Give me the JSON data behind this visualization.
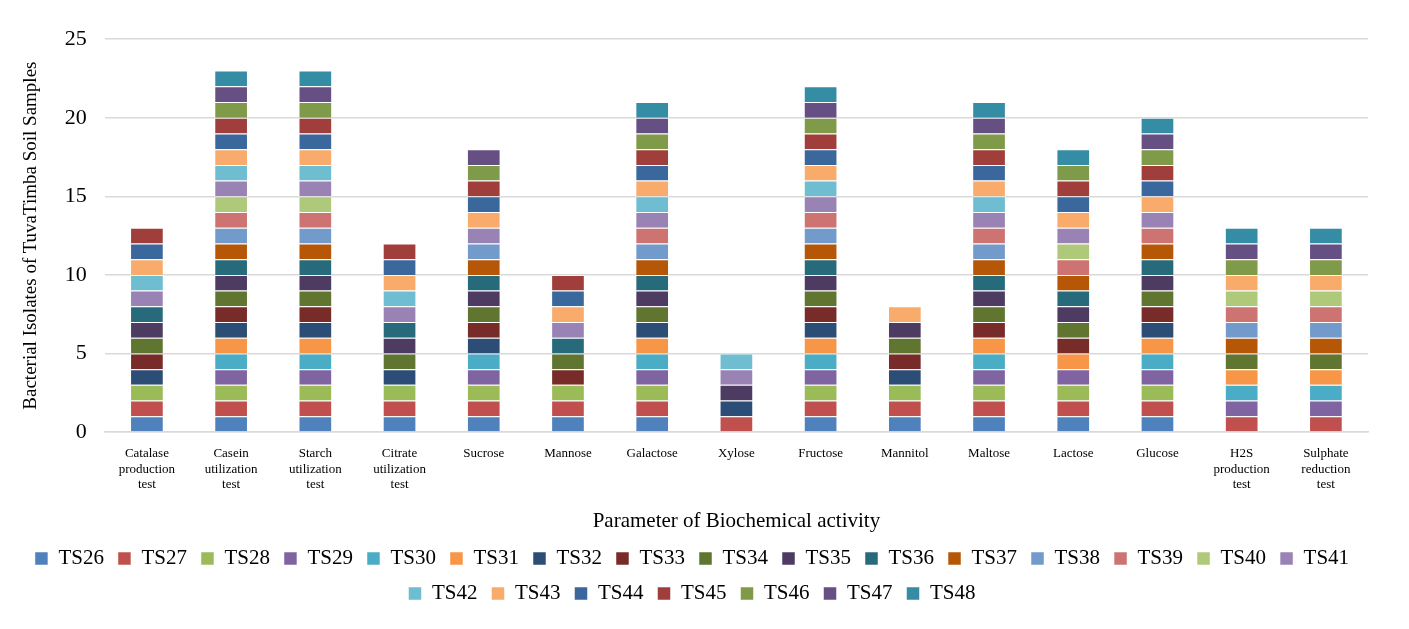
{
  "chart_data": {
    "type": "bar",
    "stacked": true,
    "xlabel": "Parameter of Biochemical activity",
    "ylabel": "Bacterial Isolates of TuvaTimba Soil Samples",
    "categories": [
      "Catalase production test",
      "Casein utilization test",
      "Starch utilization test",
      "Citrate utilization test",
      "Sucrose",
      "Mannose",
      "Galactose",
      "Xylose",
      "Fructose",
      "Mannitol",
      "Maltose",
      "Lactose",
      "Glucose",
      "H2S production test",
      "Sulphate reduction test"
    ],
    "ylim": [
      0,
      25
    ],
    "yticks": [
      0,
      5,
      10,
      15,
      20,
      25
    ],
    "grid": "y",
    "legend": "bottom",
    "series": [
      {
        "name": "TS26",
        "color": "#4f81bd",
        "values": [
          1,
          1,
          1,
          1,
          1,
          1,
          1,
          0,
          1,
          1,
          1,
          1,
          1,
          0,
          0
        ]
      },
      {
        "name": "TS27",
        "color": "#c0504d",
        "values": [
          1,
          1,
          1,
          1,
          1,
          1,
          1,
          1,
          1,
          1,
          1,
          1,
          1,
          1,
          1
        ]
      },
      {
        "name": "TS28",
        "color": "#9bbb59",
        "values": [
          1,
          1,
          1,
          1,
          1,
          1,
          1,
          0,
          1,
          1,
          1,
          1,
          1,
          0,
          0
        ]
      },
      {
        "name": "TS29",
        "color": "#8064a2",
        "values": [
          0,
          1,
          1,
          0,
          1,
          0,
          1,
          0,
          1,
          0,
          1,
          1,
          1,
          1,
          1
        ]
      },
      {
        "name": "TS30",
        "color": "#4bacc6",
        "values": [
          0,
          1,
          1,
          0,
          1,
          0,
          1,
          0,
          1,
          0,
          1,
          0,
          1,
          1,
          1
        ]
      },
      {
        "name": "TS31",
        "color": "#f79646",
        "values": [
          0,
          1,
          1,
          0,
          0,
          0,
          1,
          0,
          1,
          0,
          1,
          1,
          1,
          1,
          1
        ]
      },
      {
        "name": "TS32",
        "color": "#2c4d75",
        "values": [
          1,
          1,
          1,
          1,
          1,
          0,
          1,
          1,
          1,
          1,
          0,
          0,
          1,
          0,
          0
        ]
      },
      {
        "name": "TS33",
        "color": "#772c2a",
        "values": [
          1,
          1,
          1,
          0,
          1,
          1,
          0,
          0,
          1,
          1,
          1,
          1,
          1,
          0,
          0
        ]
      },
      {
        "name": "TS34",
        "color": "#5f7530",
        "values": [
          1,
          1,
          1,
          1,
          1,
          1,
          1,
          0,
          1,
          1,
          1,
          1,
          1,
          1,
          1
        ]
      },
      {
        "name": "TS35",
        "color": "#4d3b62",
        "values": [
          1,
          1,
          1,
          1,
          1,
          0,
          1,
          1,
          1,
          1,
          1,
          1,
          1,
          0,
          0
        ]
      },
      {
        "name": "TS36",
        "color": "#276a7c",
        "values": [
          1,
          1,
          1,
          1,
          1,
          1,
          1,
          0,
          1,
          0,
          1,
          1,
          1,
          0,
          0
        ]
      },
      {
        "name": "TS37",
        "color": "#b65708",
        "values": [
          0,
          1,
          1,
          0,
          1,
          0,
          1,
          0,
          1,
          0,
          1,
          1,
          1,
          1,
          1
        ]
      },
      {
        "name": "TS38",
        "color": "#729aca",
        "values": [
          0,
          1,
          1,
          0,
          1,
          0,
          1,
          0,
          1,
          0,
          1,
          0,
          0,
          1,
          1
        ]
      },
      {
        "name": "TS39",
        "color": "#cd7371",
        "values": [
          0,
          1,
          1,
          0,
          0,
          0,
          1,
          0,
          1,
          0,
          1,
          1,
          1,
          1,
          1
        ]
      },
      {
        "name": "TS40",
        "color": "#afc97a",
        "values": [
          0,
          1,
          1,
          0,
          0,
          0,
          0,
          0,
          0,
          0,
          0,
          1,
          0,
          1,
          1
        ]
      },
      {
        "name": "TS41",
        "color": "#9983b5",
        "values": [
          1,
          1,
          1,
          1,
          1,
          1,
          1,
          1,
          1,
          0,
          1,
          1,
          1,
          0,
          0
        ]
      },
      {
        "name": "TS42",
        "color": "#6fbdd1",
        "values": [
          1,
          1,
          1,
          1,
          0,
          0,
          1,
          1,
          1,
          0,
          1,
          0,
          0,
          0,
          0
        ]
      },
      {
        "name": "TS43",
        "color": "#f9ab6b",
        "values": [
          1,
          1,
          1,
          1,
          1,
          1,
          1,
          0,
          1,
          1,
          1,
          1,
          1,
          1,
          1
        ]
      },
      {
        "name": "TS44",
        "color": "#3a679c",
        "values": [
          1,
          1,
          1,
          1,
          1,
          1,
          1,
          0,
          1,
          0,
          1,
          1,
          1,
          0,
          0
        ]
      },
      {
        "name": "TS45",
        "color": "#9f3e3b",
        "values": [
          1,
          1,
          1,
          1,
          1,
          1,
          1,
          0,
          1,
          0,
          1,
          1,
          1,
          0,
          0
        ]
      },
      {
        "name": "TS46",
        "color": "#7f9a48",
        "values": [
          0,
          1,
          1,
          0,
          1,
          0,
          1,
          0,
          1,
          0,
          1,
          1,
          1,
          1,
          1
        ]
      },
      {
        "name": "TS47",
        "color": "#664f82",
        "values": [
          0,
          1,
          1,
          0,
          1,
          0,
          1,
          0,
          1,
          0,
          1,
          0,
          1,
          1,
          1
        ]
      },
      {
        "name": "TS48",
        "color": "#358ca5",
        "values": [
          0,
          1,
          1,
          0,
          0,
          0,
          1,
          0,
          1,
          0,
          1,
          1,
          1,
          1,
          1
        ]
      }
    ]
  }
}
